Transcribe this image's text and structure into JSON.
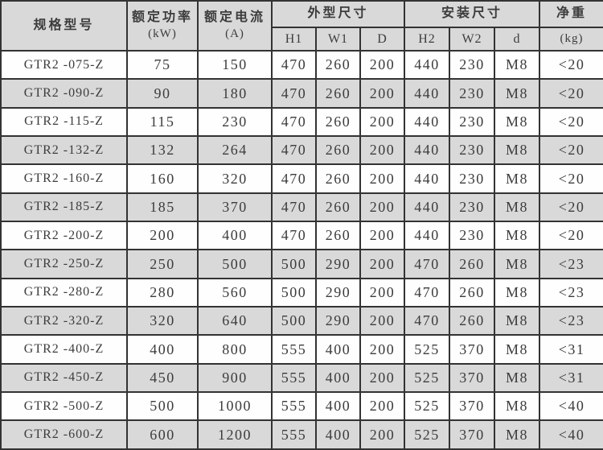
{
  "colors": {
    "header_bg": "#d9d9d9",
    "alt_row_bg": "#d9d9d9",
    "row_bg": "#fefefe",
    "border": "#333333",
    "text": "#3c3c3c"
  },
  "table": {
    "header": {
      "model": "规格型号",
      "power": [
        "额定功率",
        "(kW)"
      ],
      "current": [
        "额定电流",
        "(A)"
      ],
      "outline_group": "外型尺寸",
      "outline_cols": [
        "H1",
        "W1",
        "D"
      ],
      "mount_group": "安装尺寸",
      "mount_cols": [
        "H2",
        "W2",
        "d"
      ],
      "weight": [
        "净重",
        "(kg)"
      ]
    },
    "columns": [
      "model",
      "power",
      "current",
      "h1",
      "w1",
      "depth",
      "h2",
      "w2",
      "bolt",
      "weight"
    ],
    "rows": [
      [
        "GTR2 -075-Z",
        "75",
        "150",
        "470",
        "260",
        "200",
        "440",
        "230",
        "M8",
        "<20"
      ],
      [
        "GTR2 -090-Z",
        "90",
        "180",
        "470",
        "260",
        "200",
        "440",
        "230",
        "M8",
        "<20"
      ],
      [
        "GTR2 -115-Z",
        "115",
        "230",
        "470",
        "260",
        "200",
        "440",
        "230",
        "M8",
        "<20"
      ],
      [
        "GTR2 -132-Z",
        "132",
        "264",
        "470",
        "260",
        "200",
        "440",
        "230",
        "M8",
        "<20"
      ],
      [
        "GTR2 -160-Z",
        "160",
        "320",
        "470",
        "260",
        "200",
        "440",
        "230",
        "M8",
        "<20"
      ],
      [
        "GTR2 -185-Z",
        "185",
        "370",
        "470",
        "260",
        "200",
        "440",
        "230",
        "M8",
        "<20"
      ],
      [
        "GTR2 -200-Z",
        "200",
        "400",
        "470",
        "260",
        "200",
        "440",
        "230",
        "M8",
        "<20"
      ],
      [
        "GTR2 -250-Z",
        "250",
        "500",
        "500",
        "290",
        "200",
        "470",
        "260",
        "M8",
        "<23"
      ],
      [
        "GTR2 -280-Z",
        "280",
        "560",
        "500",
        "290",
        "200",
        "470",
        "260",
        "M8",
        "<23"
      ],
      [
        "GTR2 -320-Z",
        "320",
        "640",
        "500",
        "290",
        "200",
        "470",
        "260",
        "M8",
        "<23"
      ],
      [
        "GTR2 -400-Z",
        "400",
        "800",
        "555",
        "400",
        "200",
        "525",
        "370",
        "M8",
        "<31"
      ],
      [
        "GTR2 -450-Z",
        "450",
        "900",
        "555",
        "400",
        "200",
        "525",
        "370",
        "M8",
        "<31"
      ],
      [
        "GTR2 -500-Z",
        "500",
        "1000",
        "555",
        "400",
        "200",
        "525",
        "370",
        "M8",
        "<40"
      ],
      [
        "GTR2 -600-Z",
        "600",
        "1200",
        "555",
        "400",
        "200",
        "525",
        "370",
        "M8",
        "<40"
      ]
    ]
  }
}
